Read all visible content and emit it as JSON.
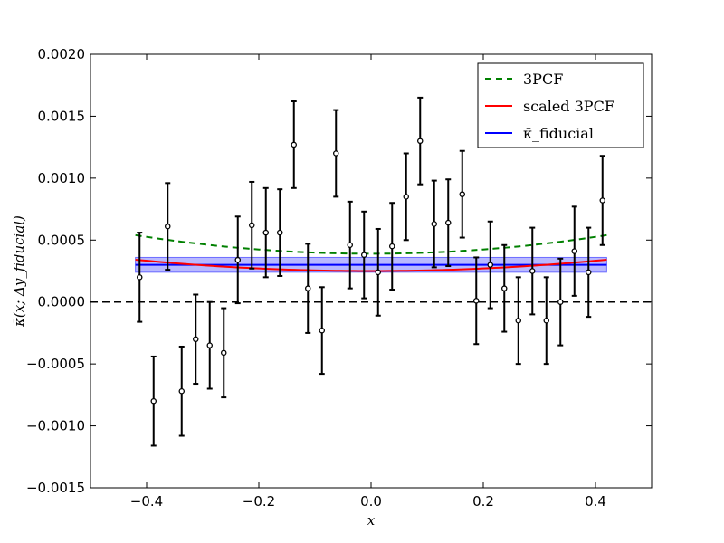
{
  "chart_data": {
    "type": "scatter",
    "xlabel": "x",
    "ylabel": "κ̄(x; Δy_fiducial)",
    "xlim": [
      -0.5,
      0.5
    ],
    "ylim": [
      -0.0015,
      0.002
    ],
    "x_ticks": [
      -0.4,
      -0.2,
      0.0,
      0.2,
      0.4
    ],
    "x_tick_labels": [
      "−0.4",
      "−0.2",
      "0.0",
      "0.2",
      "0.4"
    ],
    "y_ticks": [
      -0.0015,
      -0.001,
      -0.0005,
      0.0,
      0.0005,
      0.001,
      0.0015,
      0.002
    ],
    "y_tick_labels": [
      "−0.0015",
      "−0.0010",
      "−0.0005",
      "0.0000",
      "0.0005",
      "0.0010",
      "0.0015",
      "0.0020"
    ],
    "grid": false,
    "legend_position": "top-right",
    "reference_line": {
      "y": 0.0,
      "style": "dashed",
      "color": "#000000"
    },
    "points": {
      "x": [
        -0.4125,
        -0.3875,
        -0.3625,
        -0.3375,
        -0.3125,
        -0.2875,
        -0.2625,
        -0.2375,
        -0.2125,
        -0.1875,
        -0.1625,
        -0.1375,
        -0.1125,
        -0.0875,
        -0.0625,
        -0.0375,
        -0.0125,
        0.0125,
        0.0375,
        0.0625,
        0.0875,
        0.1125,
        0.1375,
        0.1625,
        0.1875,
        0.2125,
        0.2375,
        0.2625,
        0.2875,
        0.3125,
        0.3375,
        0.3625,
        0.3875,
        0.4125
      ],
      "y": [
        0.0002,
        -0.0008,
        0.00061,
        -0.00072,
        -0.0003,
        -0.00035,
        -0.00041,
        0.00034,
        0.00062,
        0.00056,
        0.00056,
        0.00127,
        0.00011,
        -0.00023,
        0.0012,
        0.00046,
        0.00038,
        0.00024,
        0.00045,
        0.00085,
        0.0013,
        0.00063,
        0.00064,
        0.00087,
        1e-05,
        0.0003,
        0.00011,
        -0.00015,
        0.00025,
        -0.00015,
        0.0,
        0.00041,
        0.00024,
        0.00082
      ],
      "err": [
        0.00036,
        0.00036,
        0.00035,
        0.00036,
        0.00036,
        0.00035,
        0.00036,
        0.00035,
        0.00035,
        0.00036,
        0.00035,
        0.00035,
        0.00036,
        0.00035,
        0.00035,
        0.00035,
        0.00035,
        0.00035,
        0.00035,
        0.00035,
        0.00035,
        0.00035,
        0.00035,
        0.00035,
        0.00035,
        0.00035,
        0.00035,
        0.00035,
        0.00035,
        0.00035,
        0.00035,
        0.00036,
        0.00036,
        0.00036
      ],
      "color": "#000000"
    },
    "series": [
      {
        "name": "3PCF",
        "style": "dashed",
        "color": "#008000",
        "a": 0.00039,
        "b": 0.00085
      },
      {
        "name": "scaled 3PCF",
        "style": "solid",
        "color": "#ff0000",
        "a": 0.00025,
        "b": 0.00052
      },
      {
        "name": "κ̄_fiducial",
        "style": "solid",
        "color": "#0000ff",
        "value": 0.0003,
        "band": [
          0.00024,
          0.00036
        ],
        "band_color": "#8080ff"
      }
    ],
    "curve_x_range": [
      -0.42,
      0.42
    ]
  }
}
